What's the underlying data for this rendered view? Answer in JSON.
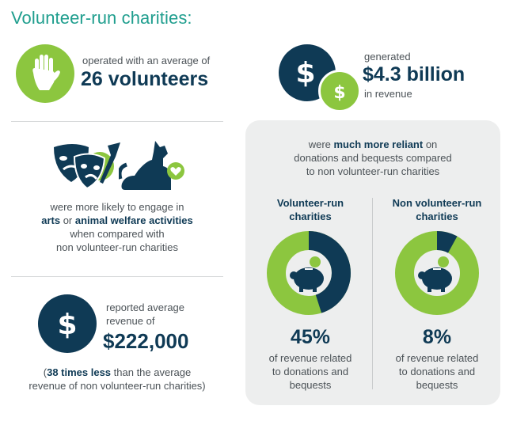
{
  "title": "Volunteer-run charities:",
  "volunteers": {
    "line1": "operated with an average of",
    "value": "26 volunteers"
  },
  "revenue_total": {
    "line1": "generated",
    "value": "$4.3 billion",
    "line3": "in revenue"
  },
  "activities": {
    "line1": "were more likely to engage in",
    "arts": "arts",
    "or": " or ",
    "animal": "animal welfare activities",
    "line3": "when compared with",
    "line4": "non volunteer-run charities"
  },
  "average_revenue": {
    "line1": "reported average",
    "line2": "revenue of",
    "value": "$222,000",
    "note_open": "(",
    "note_bold": "38 times less",
    "note_rest": " than the average",
    "note_line2": "revenue of non volunteer-run charities)"
  },
  "reliance": {
    "pre": "were ",
    "bold": "much more reliant",
    "post": " on",
    "line2": "donations and bequests compared",
    "line3": "to non volunteer-run charities"
  },
  "columns": [
    {
      "title1": "Volunteer-run",
      "title2": "charities",
      "percent": "45%",
      "fraction": 0.45,
      "desc1": "of revenue related",
      "desc2": "to donations and",
      "desc3": "bequests"
    },
    {
      "title1": "Non volunteer-run",
      "title2": "charities",
      "percent": "8%",
      "fraction": 0.08,
      "desc1": "of revenue related",
      "desc2": "to donations and",
      "desc3": "bequests"
    }
  ],
  "icons": {
    "hand": "raised-hand-icon",
    "dollar_coins": "dollar-coins-icon",
    "theatre": "theatre-masks-icon",
    "dog": "dog-with-heart-icon",
    "dollar": "dollar-icon",
    "piggy": "piggy-bank-heart-icon"
  },
  "colors": {
    "teal_title": "#1f9e8e",
    "navy": "#0f3a55",
    "green": "#8cc63f",
    "panel": "#edeeee"
  }
}
